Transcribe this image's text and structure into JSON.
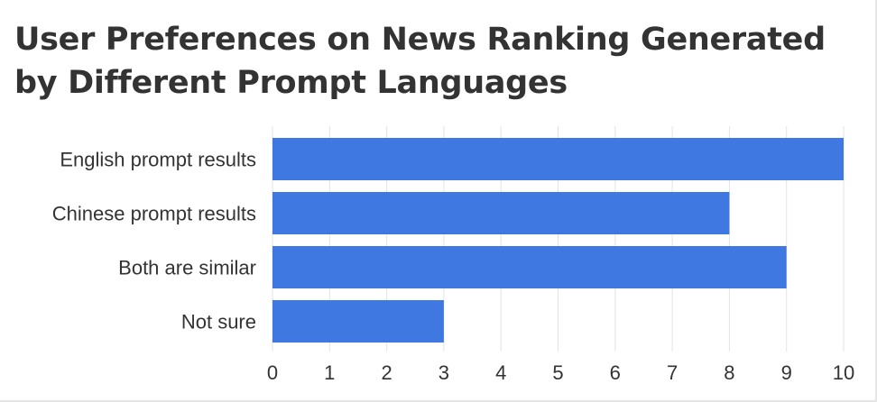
{
  "chart_data": {
    "type": "bar",
    "orientation": "horizontal",
    "title": "User Preferences on News Ranking Generated by Different Prompt Languages",
    "categories": [
      "English prompt results",
      "Chinese prompt results",
      "Both are similar",
      "Not sure"
    ],
    "values": [
      10,
      8,
      9,
      3
    ],
    "xlim": [
      0,
      10
    ],
    "xticks": [
      "0",
      "1",
      "2",
      "3",
      "4",
      "5",
      "6",
      "7",
      "8",
      "9",
      "10"
    ],
    "xlabel": "",
    "ylabel": "",
    "grid": true,
    "bar_color": "#3f78e0"
  }
}
